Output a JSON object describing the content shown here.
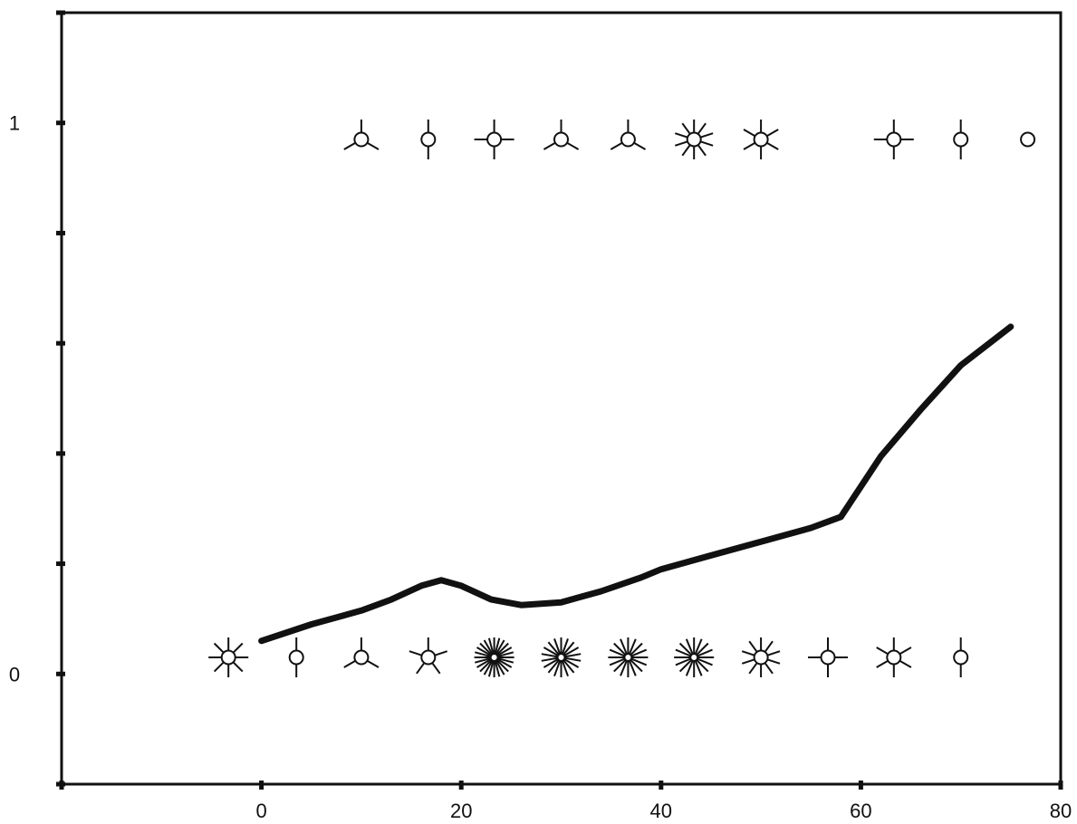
{
  "chart_data": {
    "type": "scatter",
    "title": "",
    "xlabel": "",
    "ylabel": "",
    "xlim": [
      -20,
      80
    ],
    "ylim": [
      -0.2,
      1.2
    ],
    "grid": false,
    "legend": "none",
    "color": "#111111",
    "x_ticks": [
      {
        "value": 0,
        "label": "0"
      },
      {
        "value": 20,
        "label": "20"
      },
      {
        "value": 40,
        "label": "40"
      },
      {
        "value": 60,
        "label": "60"
      },
      {
        "value": 80,
        "label": "80"
      }
    ],
    "y_ticks": [
      {
        "value": -0.2,
        "label": ""
      },
      {
        "value": 0,
        "label": "0"
      },
      {
        "value": 0.2,
        "label": ""
      },
      {
        "value": 0.4,
        "label": ""
      },
      {
        "value": 0.6,
        "label": ""
      },
      {
        "value": 0.8,
        "label": ""
      },
      {
        "value": 1,
        "label": "1"
      },
      {
        "value": 1.2,
        "label": ""
      }
    ],
    "sunflower_points": [
      {
        "x": 10,
        "y": 0.97,
        "petals": 3
      },
      {
        "x": 16.7,
        "y": 0.97,
        "petals": 2
      },
      {
        "x": 23.3,
        "y": 0.97,
        "petals": 4
      },
      {
        "x": 30,
        "y": 0.97,
        "petals": 3
      },
      {
        "x": 36.7,
        "y": 0.97,
        "petals": 3
      },
      {
        "x": 43.3,
        "y": 0.97,
        "petals": 10
      },
      {
        "x": 50,
        "y": 0.97,
        "petals": 6
      },
      {
        "x": 63.3,
        "y": 0.97,
        "petals": 4
      },
      {
        "x": 70,
        "y": 0.97,
        "petals": 2
      },
      {
        "x": 76.7,
        "y": 0.97,
        "petals": 1
      },
      {
        "x": -3.3,
        "y": 0.03,
        "petals": 8
      },
      {
        "x": 3.5,
        "y": 0.03,
        "petals": 2
      },
      {
        "x": 10,
        "y": 0.03,
        "petals": 3
      },
      {
        "x": 16.7,
        "y": 0.03,
        "petals": 5
      },
      {
        "x": 23.3,
        "y": 0.03,
        "petals": 24
      },
      {
        "x": 30,
        "y": 0.03,
        "petals": 18
      },
      {
        "x": 36.7,
        "y": 0.03,
        "petals": 16
      },
      {
        "x": 43.3,
        "y": 0.03,
        "petals": 16
      },
      {
        "x": 50,
        "y": 0.03,
        "petals": 10
      },
      {
        "x": 56.7,
        "y": 0.03,
        "petals": 4
      },
      {
        "x": 63.3,
        "y": 0.03,
        "petals": 6
      },
      {
        "x": 70,
        "y": 0.03,
        "petals": 2
      }
    ],
    "fit_line": {
      "x": [
        0,
        5,
        10,
        13,
        16,
        18,
        20,
        23,
        26,
        30,
        34,
        38,
        40,
        45,
        50,
        55,
        58,
        62,
        66,
        70,
        75
      ],
      "y": [
        0.06,
        0.09,
        0.115,
        0.135,
        0.16,
        0.17,
        0.16,
        0.135,
        0.125,
        0.13,
        0.15,
        0.175,
        0.19,
        0.215,
        0.24,
        0.265,
        0.285,
        0.395,
        0.48,
        0.56,
        0.63
      ]
    }
  }
}
